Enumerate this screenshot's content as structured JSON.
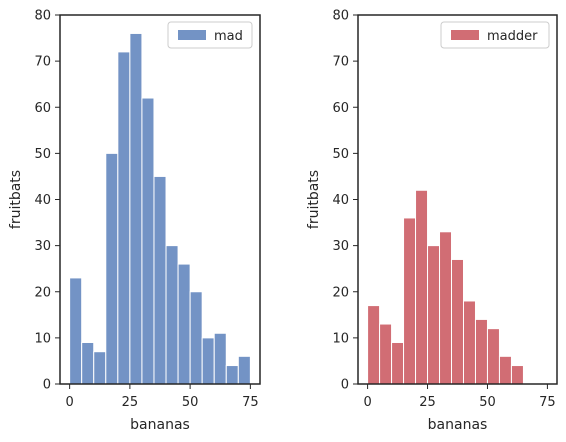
{
  "chart_data": [
    {
      "type": "bar",
      "subtype": "histogram",
      "xlabel": "bananas",
      "ylabel": "fruitbats",
      "xlim": [
        -4,
        79
      ],
      "ylim": [
        0,
        80
      ],
      "xticks": [
        0,
        25,
        50,
        75
      ],
      "yticks": [
        0,
        10,
        20,
        30,
        40,
        50,
        60,
        70,
        80
      ],
      "grid": false,
      "legend_position": "top-right",
      "series": [
        {
          "name": "mad",
          "color": "#7393c5",
          "bin_edges": [
            0,
            5,
            10,
            15,
            20,
            25,
            30,
            35,
            40,
            45,
            50,
            55,
            60,
            65,
            70,
            75
          ],
          "values": [
            23,
            9,
            7,
            50,
            72,
            76,
            62,
            45,
            30,
            26,
            20,
            10,
            11,
            4,
            6
          ]
        }
      ]
    },
    {
      "type": "bar",
      "subtype": "histogram",
      "xlabel": "bananas",
      "ylabel": "fruitbats",
      "xlim": [
        -4,
        79
      ],
      "ylim": [
        0,
        80
      ],
      "xticks": [
        0,
        25,
        50,
        75
      ],
      "yticks": [
        0,
        10,
        20,
        30,
        40,
        50,
        60,
        70,
        80
      ],
      "grid": false,
      "legend_position": "top-right",
      "series": [
        {
          "name": "madder",
          "color": "#d16d74",
          "bin_edges": [
            0,
            5,
            10,
            15,
            20,
            25,
            30,
            35,
            40,
            45,
            50,
            55,
            60,
            65
          ],
          "values": [
            17,
            13,
            9,
            36,
            42,
            30,
            33,
            27,
            18,
            14,
            12,
            6,
            4
          ]
        }
      ]
    }
  ]
}
